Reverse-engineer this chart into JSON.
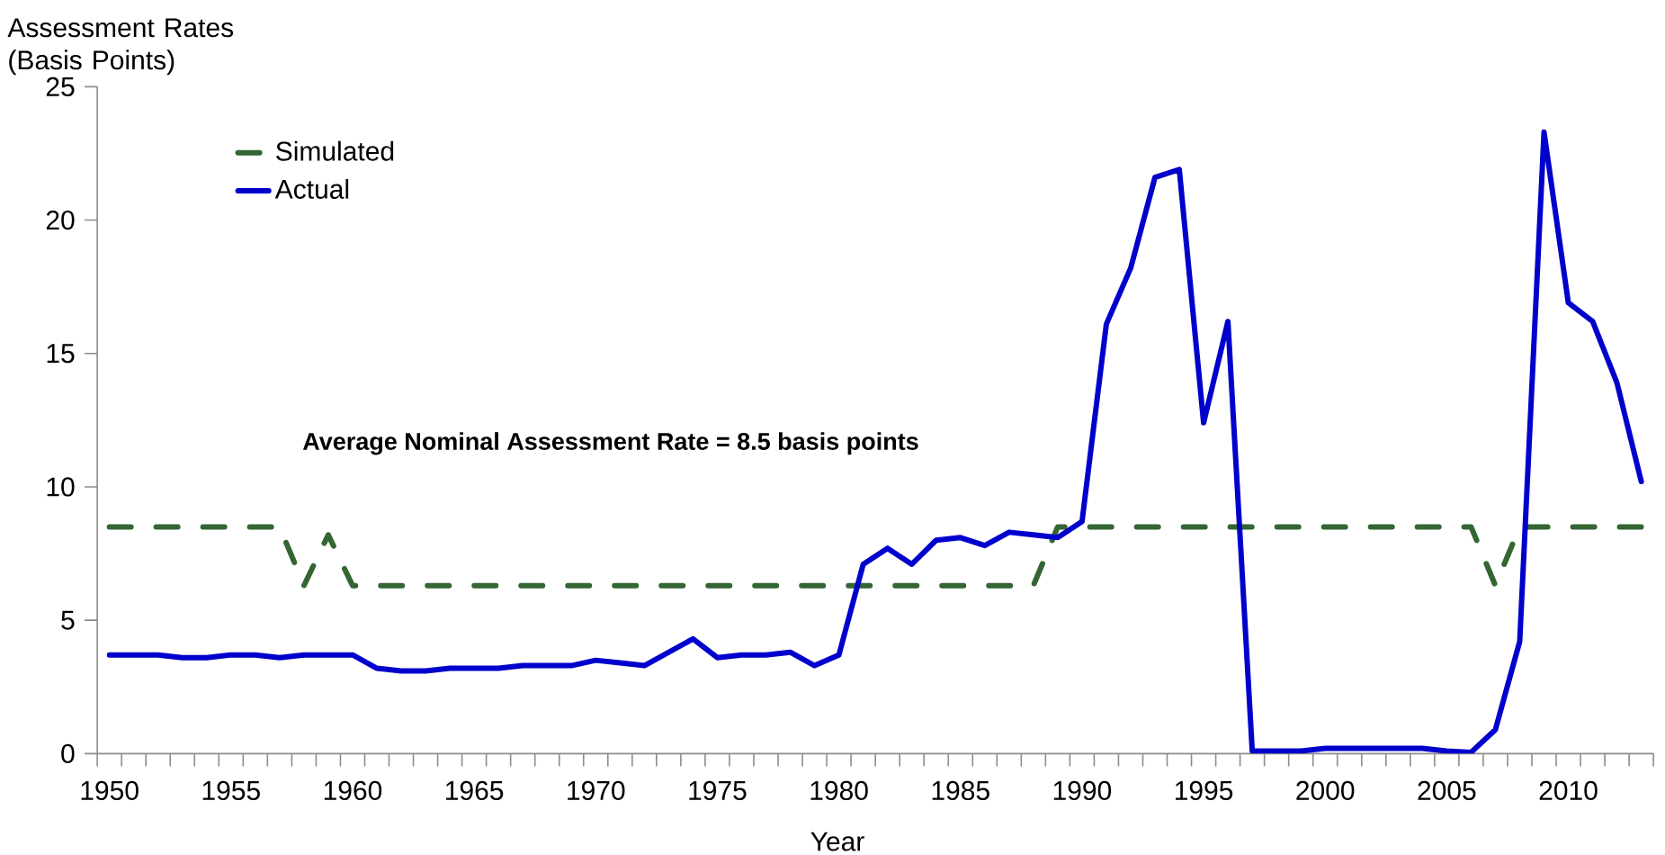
{
  "chart_data": {
    "type": "line",
    "ylabel": "Assessment Rates (Basis Points)",
    "xlabel": "Year",
    "annotations": [
      "Average Nominal Assessment Rate = 8.5 basis points"
    ],
    "categories": [
      "1950",
      null,
      null,
      null,
      null,
      "1955",
      null,
      null,
      null,
      null,
      "1960",
      null,
      null,
      null,
      null,
      "1965",
      null,
      null,
      null,
      null,
      "1970",
      null,
      null,
      null,
      null,
      "1975",
      null,
      null,
      null,
      null,
      "1980",
      null,
      null,
      null,
      null,
      "1985",
      null,
      null,
      null,
      null,
      "1990",
      null,
      null,
      null,
      null,
      "1995",
      null,
      null,
      null,
      null,
      "2000",
      null,
      null,
      null,
      null,
      "2005",
      null,
      null,
      null,
      null,
      "2010",
      null,
      null,
      null
    ],
    "series": [
      {
        "name": "Simulated",
        "color": "#336633",
        "line_style": "dashed",
        "values": [
          8.5,
          8.5,
          8.5,
          8.5,
          8.5,
          8.5,
          8.5,
          8.5,
          6.3,
          8.2,
          6.3,
          6.3,
          6.3,
          6.3,
          6.3,
          6.3,
          6.3,
          6.3,
          6.3,
          6.3,
          6.3,
          6.3,
          6.3,
          6.3,
          6.3,
          6.3,
          6.3,
          6.3,
          6.3,
          6.3,
          6.3,
          6.3,
          6.3,
          6.3,
          6.3,
          6.3,
          6.3,
          6.3,
          6.3,
          8.5,
          8.5,
          8.5,
          8.5,
          8.5,
          8.5,
          8.5,
          8.5,
          8.5,
          8.5,
          8.5,
          8.5,
          8.5,
          8.5,
          8.5,
          8.5,
          8.5,
          8.5,
          6.3,
          8.5,
          8.5,
          8.5,
          8.5,
          8.5,
          8.5
        ]
      },
      {
        "name": "Actual",
        "color": "#0000cc",
        "line_style": "solid",
        "values": [
          3.7,
          3.7,
          3.7,
          3.6,
          3.6,
          3.7,
          3.7,
          3.6,
          3.7,
          3.7,
          3.7,
          3.2,
          3.1,
          3.1,
          3.2,
          3.2,
          3.2,
          3.3,
          3.3,
          3.3,
          3.5,
          3.4,
          3.3,
          3.8,
          4.3,
          3.6,
          3.7,
          3.7,
          3.8,
          3.3,
          3.7,
          7.1,
          7.7,
          7.1,
          8.0,
          8.1,
          7.8,
          8.3,
          8.2,
          8.1,
          8.7,
          16.1,
          18.2,
          21.6,
          21.9,
          12.4,
          16.2,
          0.1,
          0.1,
          0.1,
          0.2,
          0.2,
          0.2,
          0.2,
          0.2,
          0.1,
          0.05,
          0.9,
          4.2,
          23.3,
          16.9,
          16.2,
          13.9,
          10.2
        ]
      }
    ],
    "ylim": [
      0,
      25
    ],
    "yticks": [
      0,
      5,
      10,
      15,
      20,
      25
    ],
    "grid": false,
    "legend": "top left",
    "marker": "none"
  }
}
